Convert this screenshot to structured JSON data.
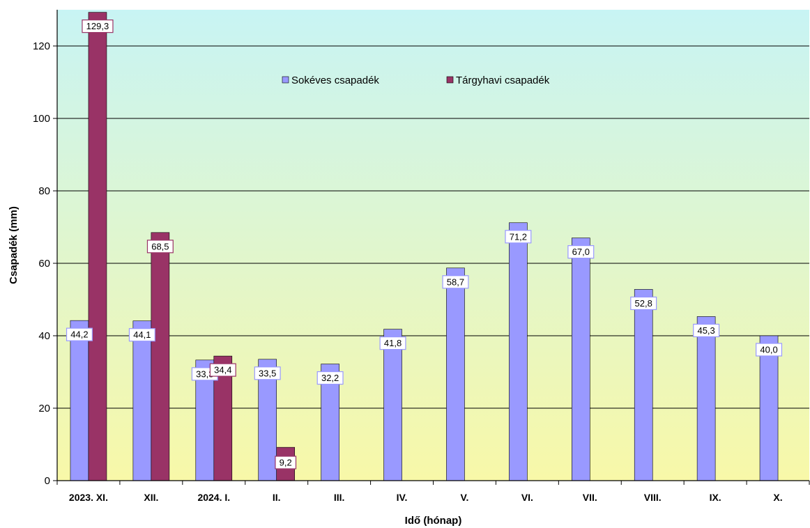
{
  "chart_data": {
    "type": "bar",
    "title": "",
    "xlabel": "Idő (hónap)",
    "ylabel": "Csapadék (mm)",
    "ylim": [
      0,
      130
    ],
    "yticks": [
      "0",
      "20",
      "40",
      "60",
      "80",
      "100",
      "120"
    ],
    "yticks_values": [
      0,
      20,
      40,
      60,
      80,
      100,
      120
    ],
    "grid": true,
    "legend_position": "top-center",
    "categories": [
      "2023. XI.",
      "XII.",
      "2024. I.",
      "II.",
      "III.",
      "IV.",
      "V.",
      "VI.",
      "VII.",
      "VIII.",
      "IX.",
      "X."
    ],
    "series": [
      {
        "name": "Sokéves csapadék",
        "color": "#9999ff",
        "values": [
          44.2,
          44.1,
          33.3,
          33.5,
          32.2,
          41.8,
          58.7,
          71.2,
          67.0,
          52.8,
          45.3,
          40.0
        ],
        "labels": [
          "44,2",
          "44,1",
          "33,3",
          "33,5",
          "32,2",
          "41,8",
          "58,7",
          "71,2",
          "67,0",
          "52,8",
          "45,3",
          "40,0"
        ]
      },
      {
        "name": "Tárgyhavi csapadék",
        "color": "#993366",
        "values": [
          129.3,
          68.5,
          34.4,
          9.2,
          null,
          null,
          null,
          null,
          null,
          null,
          null,
          null
        ],
        "labels": [
          "129,3",
          "68,5",
          "34,4",
          "9,2",
          null,
          null,
          null,
          null,
          null,
          null,
          null,
          null
        ]
      }
    ],
    "background_gradient": [
      "#c8f4f4",
      "#f8f8a8"
    ],
    "label_border_colors": [
      "#9999ff",
      "#993366"
    ]
  }
}
